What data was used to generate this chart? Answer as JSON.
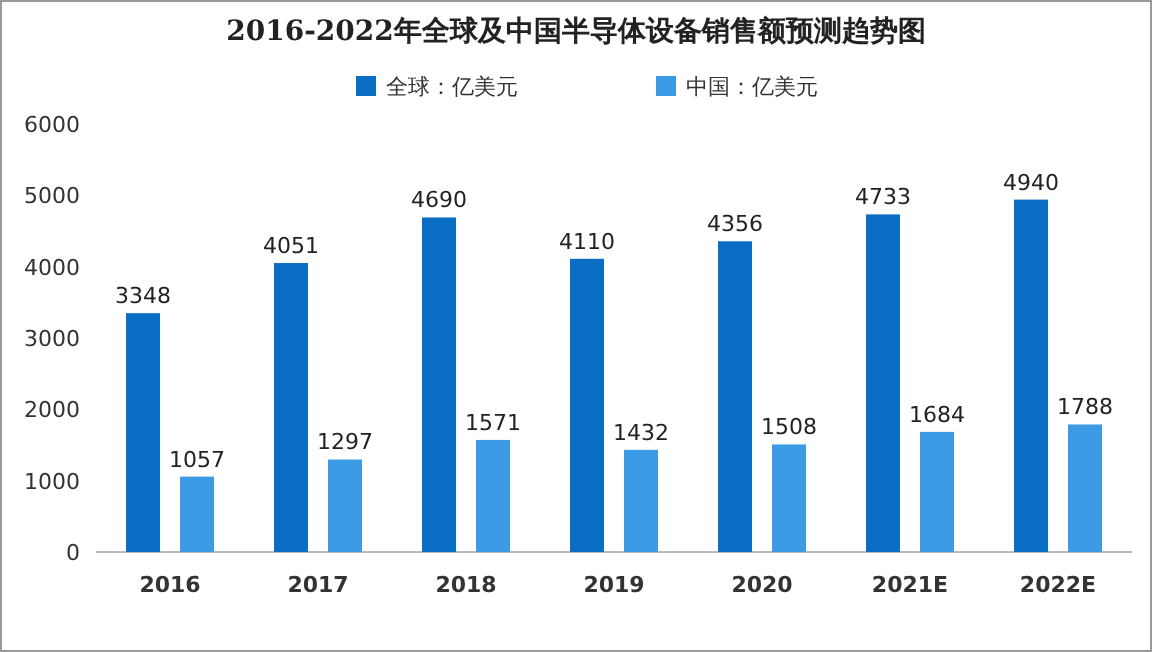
{
  "chart_data": {
    "type": "bar",
    "title": "2016-2022年全球及中国半导体设备销售额预测趋势图",
    "categories": [
      "2016",
      "2017",
      "2018",
      "2019",
      "2020",
      "2021E",
      "2022E"
    ],
    "series": [
      {
        "name": "全球：亿美元",
        "color": "#0a6ec4",
        "values": [
          3348,
          4051,
          4690,
          4110,
          4356,
          4733,
          4940
        ]
      },
      {
        "name": "中国：亿美元",
        "color": "#3d9be6",
        "values": [
          1057,
          1297,
          1571,
          1432,
          1508,
          1684,
          1788
        ]
      }
    ],
    "ylim": [
      0,
      6000
    ],
    "yticks": [
      0,
      1000,
      2000,
      3000,
      4000,
      5000,
      6000
    ],
    "data_labels": true,
    "legend": "top"
  }
}
